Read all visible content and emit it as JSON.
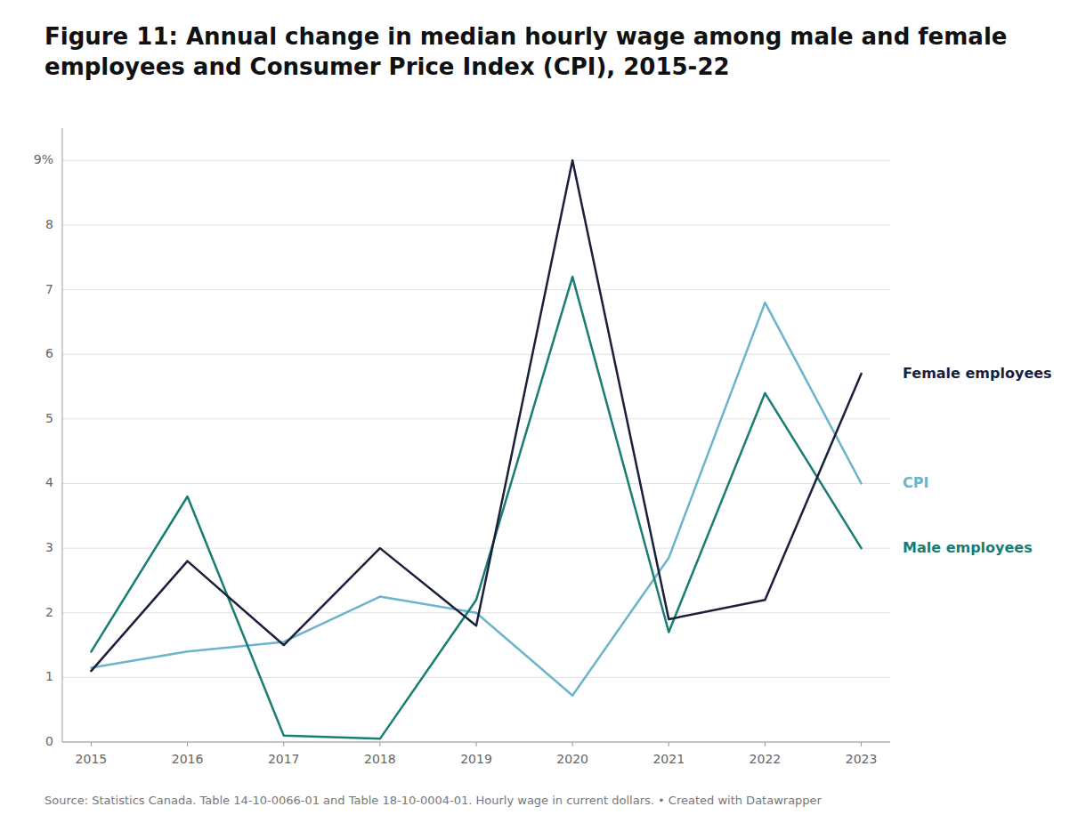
{
  "chart_data": {
    "type": "line",
    "title": "Figure 11: Annual change in median hourly wage among male and female employees and Consumer Price Index (CPI), 2015-22",
    "source": "Source: Statistics Canada. Table 14-10-0066-01 and Table 18-10-0004-01. Hourly wage in current dollars. • Created with Datawrapper",
    "x": [
      2015,
      2016,
      2017,
      2018,
      2019,
      2020,
      2021,
      2022,
      2023
    ],
    "series": [
      {
        "name": "CPI",
        "color": "#6ab4cc",
        "values": [
          1.15,
          1.4,
          1.55,
          2.25,
          2.0,
          0.72,
          2.85,
          6.8,
          4.0
        ]
      },
      {
        "name": "Male employees",
        "color": "#1a7d72",
        "values": [
          1.4,
          3.8,
          0.1,
          0.05,
          2.2,
          7.2,
          1.7,
          5.4,
          3.0
        ]
      },
      {
        "name": "Female employees",
        "color": "#1a1f3c",
        "values": [
          1.1,
          2.8,
          1.5,
          3.0,
          1.8,
          9.0,
          1.9,
          2.2,
          5.7
        ]
      }
    ],
    "xlim": [
      2014.7,
      2023.3
    ],
    "xticks": [
      2015,
      2016,
      2017,
      2018,
      2019,
      2020,
      2021,
      2022,
      2023
    ],
    "ylim": [
      0,
      9.5
    ],
    "yticks": [
      0,
      1,
      2,
      3,
      4,
      5,
      6,
      7,
      8,
      {
        "value": 9,
        "label": "9%"
      }
    ],
    "grid": true,
    "legend": "right"
  }
}
